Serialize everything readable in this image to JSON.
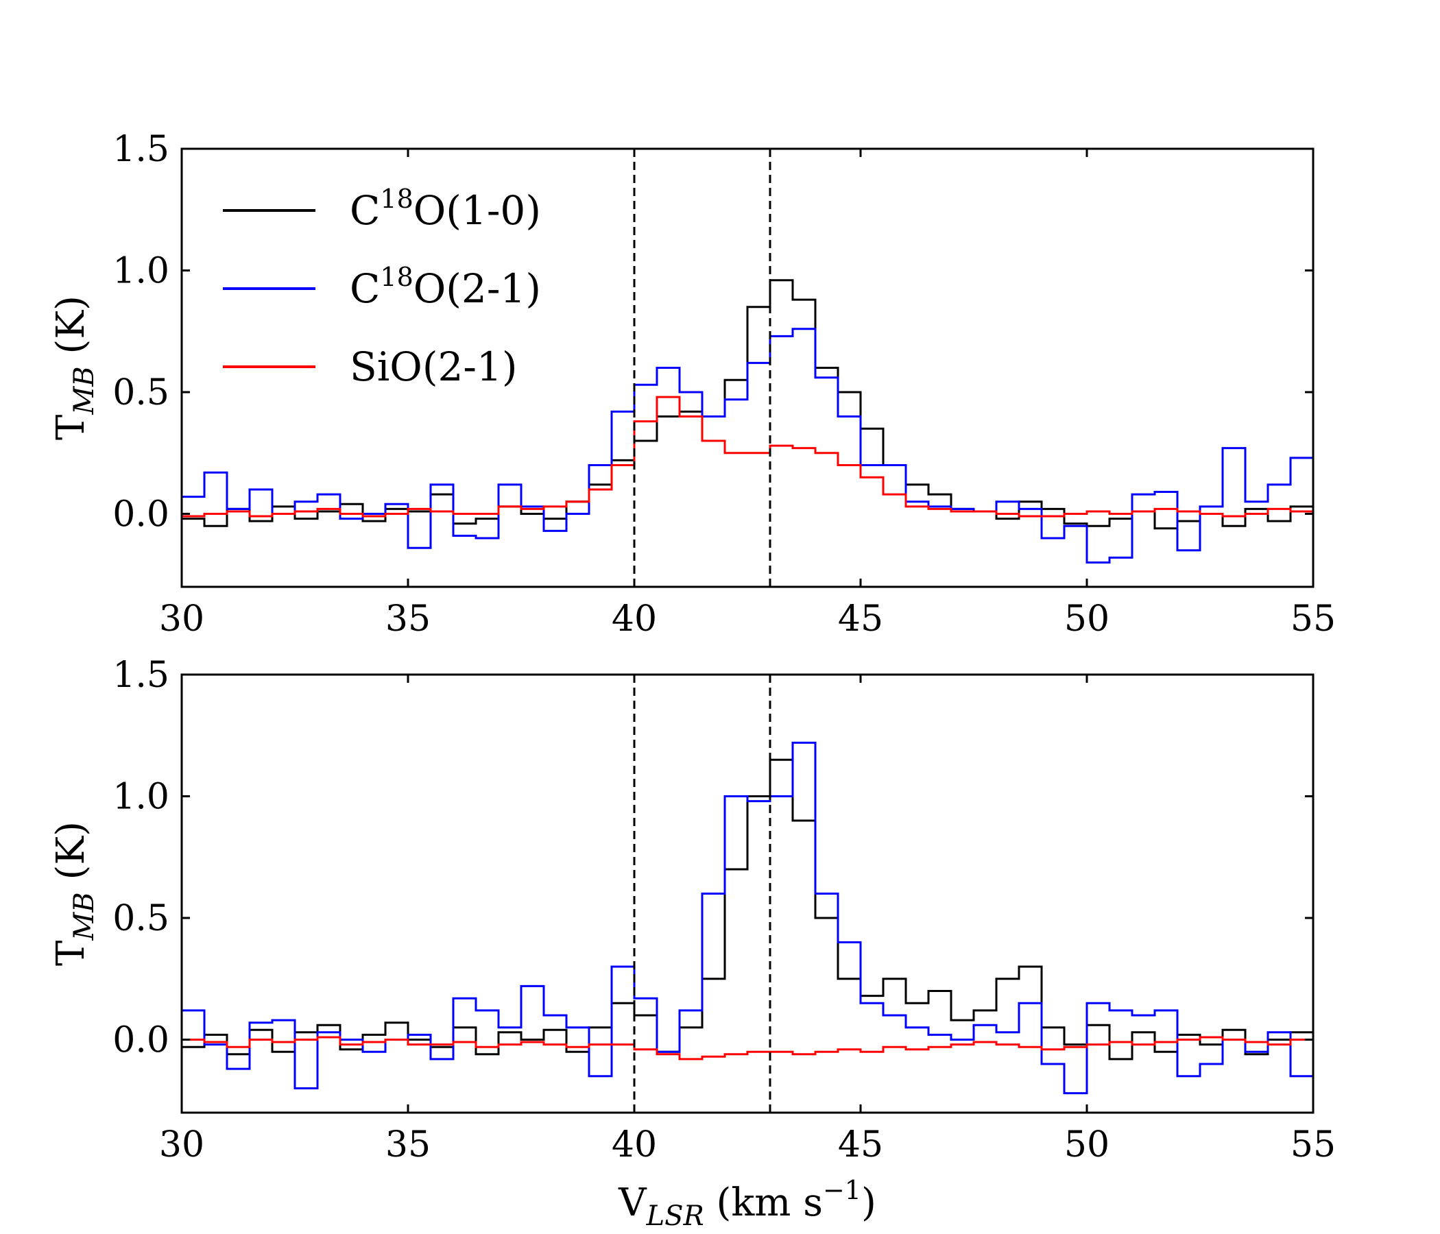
{
  "chart_data": [
    {
      "type": "line",
      "panel": "top",
      "ylabel": "T_MB (K)",
      "ylabel_main": "T",
      "ylabel_sub": "MB",
      "ylabel_unit": " (K)",
      "xlabel": "",
      "xlim": [
        30,
        55
      ],
      "ylim": [
        -0.3,
        1.5
      ],
      "xticks": [
        30,
        35,
        40,
        45,
        50,
        55
      ],
      "xtick_labels": [
        "30",
        "35",
        "40",
        "45",
        "50",
        "55"
      ],
      "yticks": [
        0.0,
        0.5,
        1.0,
        1.5
      ],
      "ytick_labels": [
        "0.0",
        "0.5",
        "1.0",
        "1.5"
      ],
      "vlines": [
        40,
        43
      ],
      "legend_location": "upper-left",
      "legend": [
        {
          "label_main": "C",
          "label_sup": "18",
          "label_rest": "O(1-0)",
          "color": "#000000"
        },
        {
          "label_main": "C",
          "label_sup": "18",
          "label_rest": "O(2-1)",
          "color": "#0000ff"
        },
        {
          "label_main": "SiO(2-1)",
          "label_sup": "",
          "label_rest": "",
          "color": "#ff0000"
        }
      ],
      "series": [
        {
          "name": "C18O(1-0)",
          "color": "#000000",
          "step": true,
          "x": [
            30.0,
            30.5,
            31.0,
            31.5,
            32.0,
            32.5,
            33.0,
            33.5,
            34.0,
            34.5,
            35.0,
            35.5,
            36.0,
            36.5,
            37.0,
            37.5,
            38.0,
            38.5,
            39.0,
            39.5,
            40.0,
            40.5,
            41.0,
            41.5,
            42.0,
            42.5,
            43.0,
            43.5,
            44.0,
            44.5,
            45.0,
            45.5,
            46.0,
            46.5,
            47.0,
            47.5,
            48.0,
            48.5,
            49.0,
            49.5,
            50.0,
            50.5,
            51.0,
            51.5,
            52.0,
            52.5,
            53.0,
            53.5,
            54.0,
            54.5,
            55.0
          ],
          "values": [
            -0.02,
            -0.05,
            0.02,
            -0.03,
            0.03,
            -0.02,
            0.01,
            0.04,
            -0.03,
            0.02,
            0.01,
            0.08,
            -0.04,
            -0.02,
            0.03,
            0.0,
            -0.02,
            0.05,
            0.12,
            0.22,
            0.3,
            0.4,
            0.42,
            0.4,
            0.55,
            0.85,
            0.96,
            0.88,
            0.6,
            0.5,
            0.35,
            0.2,
            0.12,
            0.08,
            0.02,
            0.01,
            -0.02,
            0.05,
            0.02,
            -0.04,
            -0.05,
            -0.02,
            0.01,
            -0.06,
            -0.03,
            0.0,
            -0.05,
            0.02,
            -0.03,
            0.03,
            0.01
          ]
        },
        {
          "name": "C18O(2-1)",
          "color": "#0000ff",
          "step": true,
          "x": [
            30.0,
            30.5,
            31.0,
            31.5,
            32.0,
            32.5,
            33.0,
            33.5,
            34.0,
            34.5,
            35.0,
            35.5,
            36.0,
            36.5,
            37.0,
            37.5,
            38.0,
            38.5,
            39.0,
            39.5,
            40.0,
            40.5,
            41.0,
            41.5,
            42.0,
            42.5,
            43.0,
            43.5,
            44.0,
            44.5,
            45.0,
            45.5,
            46.0,
            46.5,
            47.0,
            47.5,
            48.0,
            48.5,
            49.0,
            49.5,
            50.0,
            50.5,
            51.0,
            51.5,
            52.0,
            52.5,
            53.0,
            53.5,
            54.0,
            54.5,
            55.0
          ],
          "values": [
            0.07,
            0.17,
            0.02,
            0.1,
            0.0,
            0.05,
            0.08,
            -0.02,
            0.0,
            0.04,
            -0.14,
            0.12,
            -0.09,
            -0.1,
            0.12,
            0.03,
            -0.07,
            0.0,
            0.2,
            0.42,
            0.53,
            0.6,
            0.5,
            0.4,
            0.47,
            0.62,
            0.73,
            0.76,
            0.56,
            0.4,
            0.2,
            0.2,
            0.05,
            0.03,
            0.02,
            0.01,
            0.05,
            0.02,
            -0.1,
            -0.05,
            -0.2,
            -0.18,
            0.08,
            0.09,
            -0.15,
            0.03,
            0.27,
            0.05,
            0.12,
            0.23,
            -0.08
          ]
        },
        {
          "name": "SiO(2-1)",
          "color": "#ff0000",
          "step": true,
          "x": [
            30.0,
            30.5,
            31.0,
            31.5,
            32.0,
            32.5,
            33.0,
            33.5,
            34.0,
            34.5,
            35.0,
            35.5,
            36.0,
            36.5,
            37.0,
            37.5,
            38.0,
            38.5,
            39.0,
            39.5,
            40.0,
            40.5,
            41.0,
            41.5,
            42.0,
            42.5,
            43.0,
            43.5,
            44.0,
            44.5,
            45.0,
            45.5,
            46.0,
            46.5,
            47.0,
            47.5,
            48.0,
            48.5,
            49.0,
            49.5,
            50.0,
            50.5,
            51.0,
            51.5,
            52.0,
            52.5,
            53.0,
            53.5,
            54.0,
            54.5,
            55.0
          ],
          "values": [
            -0.01,
            0.0,
            0.01,
            -0.01,
            0.0,
            0.01,
            0.02,
            0.0,
            -0.01,
            0.0,
            0.02,
            0.01,
            0.0,
            0.0,
            0.03,
            0.02,
            0.03,
            0.05,
            0.1,
            0.2,
            0.38,
            0.48,
            0.4,
            0.3,
            0.25,
            0.25,
            0.28,
            0.27,
            0.25,
            0.2,
            0.15,
            0.08,
            0.03,
            0.02,
            0.01,
            0.01,
            0.0,
            -0.01,
            -0.01,
            0.0,
            0.01,
            0.0,
            0.01,
            0.02,
            0.01,
            0.0,
            -0.01,
            0.0,
            0.02,
            0.01,
            0.0
          ]
        }
      ]
    },
    {
      "type": "line",
      "panel": "bottom",
      "ylabel": "T_MB (K)",
      "ylabel_main": "T",
      "ylabel_sub": "MB",
      "ylabel_unit": " (K)",
      "xlabel": "V_LSR (km s^-1)",
      "xlabel_main": "V",
      "xlabel_sub": "LSR",
      "xlabel_unit": " (km s",
      "xlabel_sup": "−1",
      "xlabel_close": ")",
      "xlim": [
        30,
        55
      ],
      "ylim": [
        -0.3,
        1.5
      ],
      "xticks": [
        30,
        35,
        40,
        45,
        50,
        55
      ],
      "xtick_labels": [
        "30",
        "35",
        "40",
        "45",
        "50",
        "55"
      ],
      "yticks": [
        0.0,
        0.5,
        1.0,
        1.5
      ],
      "ytick_labels": [
        "0.0",
        "0.5",
        "1.0",
        "1.5"
      ],
      "vlines": [
        40,
        43
      ],
      "series": [
        {
          "name": "C18O(1-0)",
          "color": "#000000",
          "step": true,
          "x": [
            30.0,
            30.5,
            31.0,
            31.5,
            32.0,
            32.5,
            33.0,
            33.5,
            34.0,
            34.5,
            35.0,
            35.5,
            36.0,
            36.5,
            37.0,
            37.5,
            38.0,
            38.5,
            39.0,
            39.5,
            40.0,
            40.5,
            41.0,
            41.5,
            42.0,
            42.5,
            43.0,
            43.5,
            44.0,
            44.5,
            45.0,
            45.5,
            46.0,
            46.5,
            47.0,
            47.5,
            48.0,
            48.5,
            49.0,
            49.5,
            50.0,
            50.5,
            51.0,
            51.5,
            52.0,
            52.5,
            53.0,
            53.5,
            54.0,
            54.5,
            55.0
          ],
          "values": [
            -0.03,
            0.02,
            -0.06,
            0.04,
            -0.05,
            0.03,
            0.06,
            -0.04,
            0.02,
            0.07,
            0.0,
            -0.03,
            0.05,
            -0.06,
            0.03,
            0.0,
            0.04,
            -0.05,
            0.05,
            0.15,
            0.1,
            -0.05,
            0.05,
            0.25,
            0.7,
            1.0,
            1.15,
            0.9,
            0.5,
            0.25,
            0.18,
            0.25,
            0.15,
            0.2,
            0.08,
            0.12,
            0.25,
            0.3,
            0.05,
            -0.02,
            0.06,
            -0.08,
            0.03,
            -0.05,
            0.02,
            -0.02,
            0.04,
            -0.06,
            0.0,
            0.03,
            -0.02
          ]
        },
        {
          "name": "C18O(2-1)",
          "color": "#0000ff",
          "step": true,
          "x": [
            30.0,
            30.5,
            31.0,
            31.5,
            32.0,
            32.5,
            33.0,
            33.5,
            34.0,
            34.5,
            35.0,
            35.5,
            36.0,
            36.5,
            37.0,
            37.5,
            38.0,
            38.5,
            39.0,
            39.5,
            40.0,
            40.5,
            41.0,
            41.5,
            42.0,
            42.5,
            43.0,
            43.5,
            44.0,
            44.5,
            45.0,
            45.5,
            46.0,
            46.5,
            47.0,
            47.5,
            48.0,
            48.5,
            49.0,
            49.5,
            50.0,
            50.5,
            51.0,
            51.5,
            52.0,
            52.5,
            53.0,
            53.5,
            54.0,
            54.5,
            55.0
          ],
          "values": [
            0.12,
            -0.02,
            -0.12,
            0.07,
            0.08,
            -0.2,
            0.03,
            0.0,
            -0.05,
            0.0,
            0.02,
            -0.08,
            0.17,
            0.12,
            0.05,
            0.22,
            0.1,
            0.05,
            -0.15,
            0.3,
            0.17,
            -0.05,
            0.12,
            0.6,
            1.0,
            0.98,
            1.0,
            1.22,
            0.6,
            0.4,
            0.15,
            0.1,
            0.05,
            0.02,
            0.0,
            0.06,
            0.03,
            0.15,
            -0.1,
            -0.22,
            0.15,
            0.12,
            0.1,
            0.12,
            -0.15,
            -0.1,
            0.0,
            -0.05,
            0.03,
            -0.15,
            -0.25
          ]
        },
        {
          "name": "SiO(2-1)",
          "color": "#ff0000",
          "step": true,
          "x": [
            30.0,
            30.5,
            31.0,
            31.5,
            32.0,
            32.5,
            33.0,
            33.5,
            34.0,
            34.5,
            35.0,
            35.5,
            36.0,
            36.5,
            37.0,
            37.5,
            38.0,
            38.5,
            39.0,
            39.5,
            40.0,
            40.5,
            41.0,
            41.5,
            42.0,
            42.5,
            43.0,
            43.5,
            44.0,
            44.5,
            45.0,
            45.5,
            46.0,
            46.5,
            47.0,
            47.5,
            48.0,
            48.5,
            49.0,
            49.5,
            50.0,
            50.5,
            51.0,
            51.5,
            52.0,
            52.5,
            53.0,
            53.5,
            54.0,
            54.5,
            55.0
          ],
          "values": [
            0.0,
            -0.01,
            -0.03,
            0.0,
            -0.01,
            0.0,
            0.01,
            -0.02,
            -0.01,
            0.0,
            -0.02,
            -0.02,
            -0.01,
            -0.03,
            -0.02,
            -0.01,
            -0.02,
            -0.03,
            -0.02,
            -0.02,
            -0.04,
            -0.06,
            -0.08,
            -0.07,
            -0.06,
            -0.05,
            -0.05,
            -0.06,
            -0.05,
            -0.04,
            -0.05,
            -0.03,
            -0.04,
            -0.03,
            -0.02,
            -0.01,
            -0.02,
            -0.03,
            -0.04,
            -0.03,
            -0.02,
            -0.01,
            -0.02,
            -0.01,
            0.0,
            0.01,
            0.0,
            -0.01,
            -0.02,
            0.0,
            -0.01
          ]
        }
      ]
    }
  ]
}
